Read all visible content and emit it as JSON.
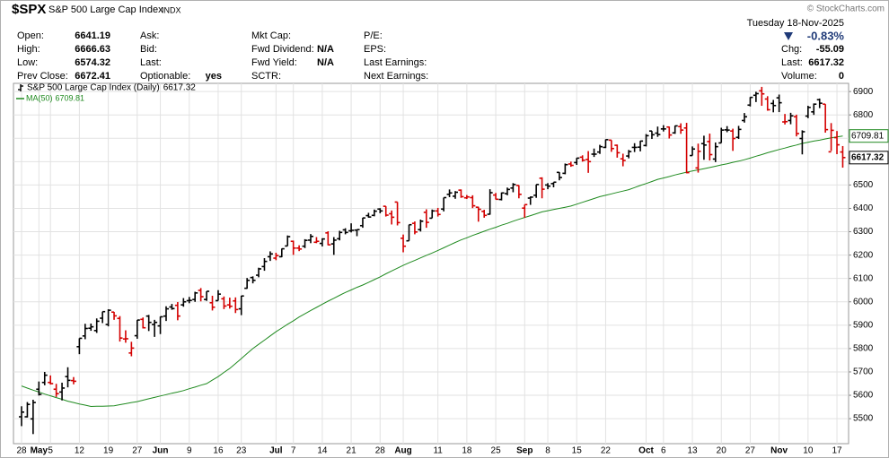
{
  "chart_data": {
    "type": "ohlc",
    "title": "$SPX",
    "subtitle": "S&P 500 Large Cap Index",
    "exchange": "INDX",
    "credit": "© StockCharts.com",
    "ohlc_name": "S&P 500 Large Cap Index (Daily)",
    "up_color": "#000000",
    "down_color": "#d40000",
    "grid": true,
    "ylim": [
      5393,
      6935
    ],
    "yticks": [
      5500,
      5600,
      5700,
      5800,
      5900,
      6000,
      6100,
      6200,
      6300,
      6400,
      6500,
      6600,
      6700,
      6800,
      6900
    ],
    "categories": [
      "28",
      null,
      null,
      "May",
      null,
      "5",
      null,
      null,
      null,
      null,
      "12",
      null,
      null,
      null,
      null,
      "19",
      null,
      null,
      null,
      null,
      "27",
      null,
      null,
      null,
      "Jun",
      null,
      null,
      null,
      null,
      "9",
      null,
      null,
      null,
      null,
      "16",
      null,
      null,
      null,
      "23",
      null,
      null,
      null,
      null,
      null,
      "Jul",
      null,
      null,
      "7",
      null,
      null,
      null,
      null,
      "14",
      null,
      null,
      null,
      null,
      "21",
      null,
      null,
      null,
      null,
      "28",
      null,
      null,
      null,
      "Aug",
      null,
      null,
      null,
      null,
      null,
      "11",
      null,
      null,
      null,
      null,
      "18",
      null,
      null,
      null,
      null,
      "25",
      null,
      null,
      null,
      null,
      "Sep",
      null,
      null,
      null,
      "8",
      null,
      null,
      null,
      null,
      "15",
      null,
      null,
      null,
      null,
      "22",
      null,
      null,
      null,
      null,
      null,
      null,
      "Oct",
      null,
      null,
      "6",
      null,
      null,
      null,
      null,
      "13",
      null,
      null,
      null,
      null,
      "20",
      null,
      null,
      null,
      null,
      "27",
      null,
      null,
      null,
      null,
      "Nov",
      null,
      null,
      null,
      null,
      "10",
      null,
      null,
      null,
      null,
      "17",
      null
    ],
    "ohlc": [
      [
        5508,
        5553,
        5468,
        5528
      ],
      [
        5508,
        5571,
        5505,
        5561
      ],
      [
        5499,
        5581,
        5434,
        5569
      ],
      [
        5626,
        5659,
        5599,
        5604
      ],
      [
        5655,
        5700,
        5643,
        5686
      ],
      [
        5655,
        5685,
        5646,
        5650
      ],
      [
        5626,
        5649,
        5593,
        5607
      ],
      [
        5614,
        5654,
        5578,
        5631
      ],
      [
        5680,
        5720,
        5634,
        5664
      ],
      [
        5663,
        5678,
        5647,
        5660
      ],
      [
        5808,
        5844,
        5776,
        5844
      ],
      [
        5854,
        5906,
        5840,
        5886
      ],
      [
        5887,
        5907,
        5876,
        5893
      ],
      [
        5877,
        5929,
        5867,
        5917
      ],
      [
        5930,
        5958,
        5909,
        5958
      ],
      [
        5903,
        5968,
        5895,
        5964
      ],
      [
        5956,
        5957,
        5923,
        5940
      ],
      [
        5929,
        5939,
        5830,
        5845
      ],
      [
        5841,
        5878,
        5825,
        5842
      ],
      [
        5781,
        5829,
        5767,
        5802
      ],
      [
        5855,
        5922,
        5842,
        5922
      ],
      [
        5925,
        5933,
        5886,
        5889
      ],
      [
        5939,
        5944,
        5875,
        5912
      ],
      [
        5903,
        5923,
        5850,
        5912
      ],
      [
        5897,
        5937,
        5862,
        5936
      ],
      [
        5939,
        5981,
        5918,
        5970
      ],
      [
        5978,
        5991,
        5966,
        5971
      ],
      [
        5985,
        5999,
        5921,
        5939
      ],
      [
        5987,
        6016,
        5979,
        6000
      ],
      [
        6005,
        6021,
        5994,
        6006
      ],
      [
        6010,
        6043,
        6000,
        6038
      ],
      [
        6049,
        6059,
        6002,
        6022
      ],
      [
        6010,
        6045,
        6004,
        6045
      ],
      [
        5996,
        6026,
        5963,
        5977
      ],
      [
        6005,
        6050,
        6005,
        6033
      ],
      [
        6013,
        6023,
        5969,
        5982
      ],
      [
        5987,
        6018,
        5971,
        5981
      ],
      [
        6004,
        6019,
        5952,
        5967
      ],
      [
        5970,
        6026,
        5943,
        6025
      ],
      [
        6058,
        6102,
        6056,
        6092
      ],
      [
        6104,
        6109,
        6079,
        6092
      ],
      [
        6114,
        6146,
        6105,
        6141
      ],
      [
        6151,
        6187,
        6133,
        6173
      ],
      [
        6193,
        6216,
        6175,
        6205
      ],
      [
        6187,
        6210,
        6178,
        6198
      ],
      [
        6193,
        6228,
        6191,
        6227
      ],
      [
        6239,
        6284,
        6239,
        6279
      ],
      [
        6259,
        6262,
        6201,
        6230
      ],
      [
        6230,
        6242,
        6217,
        6226
      ],
      [
        6238,
        6268,
        6230,
        6263
      ],
      [
        6264,
        6290,
        6251,
        6280
      ],
      [
        6255,
        6277,
        6251,
        6259
      ],
      [
        6250,
        6272,
        6237,
        6269
      ],
      [
        6295,
        6302,
        6242,
        6244
      ],
      [
        6248,
        6277,
        6201,
        6264
      ],
      [
        6270,
        6304,
        6263,
        6297
      ],
      [
        6308,
        6315,
        6289,
        6297
      ],
      [
        6304,
        6336,
        6297,
        6306
      ],
      [
        6307,
        6310,
        6281,
        6309
      ],
      [
        6326,
        6360,
        6317,
        6359
      ],
      [
        6369,
        6381,
        6360,
        6363
      ],
      [
        6370,
        6395,
        6366,
        6388
      ],
      [
        6397,
        6401,
        6379,
        6389
      ],
      [
        6409,
        6409,
        6365,
        6371
      ],
      [
        6377,
        6391,
        6331,
        6362
      ],
      [
        6427,
        6427,
        6327,
        6339
      ],
      [
        6272,
        6288,
        6212,
        6238
      ],
      [
        6261,
        6330,
        6261,
        6330
      ],
      [
        6336,
        6344,
        6289,
        6299
      ],
      [
        6309,
        6352,
        6301,
        6345
      ],
      [
        6383,
        6396,
        6317,
        6340
      ],
      [
        6358,
        6395,
        6358,
        6389
      ],
      [
        6389,
        6402,
        6365,
        6374
      ],
      [
        6397,
        6446,
        6387,
        6446
      ],
      [
        6460,
        6481,
        6448,
        6466
      ],
      [
        6452,
        6474,
        6441,
        6469
      ],
      [
        6478,
        6481,
        6445,
        6450
      ],
      [
        6445,
        6457,
        6440,
        6449
      ],
      [
        6446,
        6456,
        6401,
        6411
      ],
      [
        6405,
        6407,
        6343,
        6396
      ],
      [
        6387,
        6394,
        6360,
        6370
      ],
      [
        6375,
        6482,
        6373,
        6467
      ],
      [
        6457,
        6466,
        6438,
        6439
      ],
      [
        6438,
        6468,
        6434,
        6466
      ],
      [
        6463,
        6489,
        6456,
        6481
      ],
      [
        6487,
        6508,
        6469,
        6502
      ],
      [
        6498,
        6499,
        6443,
        6460
      ],
      [
        6401,
        6416,
        6360,
        6416
      ],
      [
        6444,
        6451,
        6415,
        6448
      ],
      [
        6456,
        6502,
        6445,
        6502
      ],
      [
        6529,
        6533,
        6443,
        6482
      ],
      [
        6500,
        6508,
        6482,
        6495
      ],
      [
        6506,
        6512,
        6490,
        6512
      ],
      [
        6554,
        6555,
        6520,
        6532
      ],
      [
        6550,
        6592,
        6546,
        6587
      ],
      [
        6590,
        6600,
        6578,
        6584
      ],
      [
        6596,
        6616,
        6586,
        6615
      ],
      [
        6619,
        6627,
        6600,
        6606
      ],
      [
        6609,
        6645,
        6552,
        6600
      ],
      [
        6632,
        6656,
        6620,
        6632
      ],
      [
        6641,
        6672,
        6633,
        6664
      ],
      [
        6661,
        6695,
        6658,
        6694
      ],
      [
        6692,
        6692,
        6642,
        6656
      ],
      [
        6670,
        6673,
        6617,
        6638
      ],
      [
        6612,
        6634,
        6580,
        6605
      ],
      [
        6624,
        6650,
        6614,
        6643
      ],
      [
        6661,
        6679,
        6641,
        6661
      ],
      [
        6662,
        6689,
        6644,
        6688
      ],
      [
        6669,
        6718,
        6665,
        6711
      ],
      [
        6731,
        6731,
        6697,
        6715
      ],
      [
        6722,
        6750,
        6706,
        6716
      ],
      [
        6740,
        6756,
        6729,
        6740
      ],
      [
        6748,
        6750,
        6699,
        6714
      ],
      [
        6723,
        6754,
        6719,
        6753
      ],
      [
        6750,
        6764,
        6719,
        6735
      ],
      [
        6744,
        6766,
        6550,
        6553
      ],
      [
        6626,
        6665,
        6626,
        6654
      ],
      [
        6573,
        6677,
        6553,
        6644
      ],
      [
        6677,
        6711,
        6608,
        6671
      ],
      [
        6686,
        6720,
        6605,
        6630
      ],
      [
        6611,
        6682,
        6598,
        6664
      ],
      [
        6680,
        6745,
        6680,
        6735
      ],
      [
        6736,
        6752,
        6726,
        6735
      ],
      [
        6731,
        6741,
        6646,
        6699
      ],
      [
        6704,
        6753,
        6697,
        6738
      ],
      [
        6776,
        6808,
        6767,
        6792
      ],
      [
        6842,
        6876,
        6836,
        6875
      ],
      [
        6884,
        6899,
        6855,
        6891
      ],
      [
        6903,
        6920,
        6839,
        6890
      ],
      [
        6868,
        6880,
        6818,
        6822
      ],
      [
        6849,
        6864,
        6811,
        6840
      ],
      [
        6873,
        6887,
        6812,
        6852
      ],
      [
        6770,
        6804,
        6759,
        6771
      ],
      [
        6776,
        6809,
        6760,
        6796
      ],
      [
        6792,
        6801,
        6708,
        6720
      ],
      [
        6699,
        6734,
        6631,
        6728
      ],
      [
        6795,
        6839,
        6786,
        6832
      ],
      [
        6813,
        6849,
        6800,
        6846
      ],
      [
        6865,
        6870,
        6829,
        6850
      ],
      [
        6846,
        6846,
        6724,
        6737
      ],
      [
        6642,
        6765,
        6646,
        6734
      ],
      [
        6703,
        6731,
        6632,
        6672
      ],
      [
        6641.19,
        6666.63,
        6574.32,
        6617.32
      ]
    ],
    "series": [
      {
        "name": "MA(50)",
        "color": "#1f8a1f",
        "values": [
          5640,
          5631,
          5622,
          5614,
          5605,
          5598,
          5590,
          5583,
          5575,
          5569,
          5563,
          5558,
          5552,
          5553,
          5553,
          5554,
          5555,
          5560,
          5564,
          5569,
          5573,
          5579,
          5585,
          5591,
          5597,
          5603,
          5609,
          5614,
          5620,
          5628,
          5635,
          5643,
          5650,
          5665,
          5680,
          5698,
          5715,
          5736,
          5757,
          5779,
          5800,
          5818,
          5836,
          5854,
          5872,
          5888,
          5904,
          5919,
          5935,
          5949,
          5963,
          5976,
          5990,
          6003,
          6015,
          6028,
          6040,
          6051,
          6062,
          6072,
          6083,
          6095,
          6107,
          6120,
          6132,
          6144,
          6156,
          6167,
          6177,
          6188,
          6199,
          6209,
          6220,
          6231,
          6243,
          6254,
          6265,
          6274,
          6284,
          6293,
          6302,
          6311,
          6319,
          6328,
          6336,
          6345,
          6353,
          6361,
          6369,
          6377,
          6385,
          6390,
          6395,
          6400,
          6405,
          6410,
          6418,
          6426,
          6434,
          6442,
          6450,
          6456,
          6462,
          6468,
          6474,
          6480,
          6489,
          6498,
          6506,
          6515,
          6524,
          6530,
          6536,
          6543,
          6549,
          6555,
          6560,
          6565,
          6570,
          6575,
          6580,
          6586,
          6591,
          6597,
          6602,
          6608,
          6615,
          6623,
          6630,
          6638,
          6645,
          6652,
          6658,
          6665,
          6671,
          6678,
          6683,
          6688,
          6692,
          6697,
          6702,
          6706,
          6709.81
        ]
      }
    ]
  },
  "quote_panel": {
    "columns": [
      [
        {
          "label": "Open:",
          "value": "6641.19"
        },
        {
          "label": "High:",
          "value": "6666.63"
        },
        {
          "label": "Low:",
          "value": "6574.32"
        },
        {
          "label": "Prev Close:",
          "value": "6672.41"
        }
      ],
      [
        {
          "label": "Ask:"
        },
        {
          "label": "Bid:"
        },
        {
          "label": "Last:"
        },
        {
          "label": "Optionable:",
          "value": "yes"
        }
      ],
      [
        {
          "label": "Mkt Cap:"
        },
        {
          "label": "Fwd Dividend:",
          "value": "N/A"
        },
        {
          "label": "Fwd Yield:",
          "value": "N/A"
        },
        {
          "label": "SCTR:"
        }
      ],
      [
        {
          "label": "P/E:"
        },
        {
          "label": "EPS:"
        },
        {
          "label": "Last Earnings:"
        },
        {
          "label": "Next Earnings:"
        }
      ]
    ],
    "date": "Tuesday 18-Nov-2025",
    "change_pct": "-0.83%",
    "stats": [
      {
        "label": "Chg:",
        "value": "-55.09"
      },
      {
        "label": "Last:",
        "value": "6617.32"
      },
      {
        "label": "Volume:",
        "value": "0"
      }
    ]
  }
}
